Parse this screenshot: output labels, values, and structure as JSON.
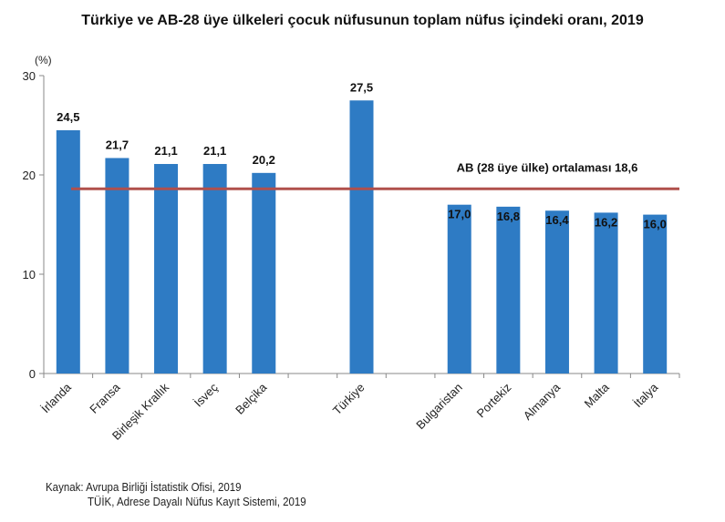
{
  "chart_data": {
    "type": "bar",
    "title": "Türkiye ve AB-28 üye ülkeleri çocuk nüfusunun toplam nüfus içindeki oranı, 2019",
    "ylabel": "(%)",
    "ylim": [
      0,
      30
    ],
    "yticks": [
      0,
      10,
      20,
      30
    ],
    "categories": [
      "İrlanda",
      "Fransa",
      "Birleşik Krallık",
      "İsveç",
      "Belçika",
      "Türkiye",
      "Bulgaristan",
      "Portekiz",
      "Almanya",
      "Malta",
      "İtalya"
    ],
    "values": [
      24.5,
      21.7,
      21.1,
      21.1,
      20.2,
      27.5,
      17.0,
      16.8,
      16.4,
      16.2,
      16.0
    ],
    "value_labels": [
      "24,5",
      "21,7",
      "21,1",
      "21,1",
      "20,2",
      "27,5",
      "17,0",
      "16,8",
      "16,4",
      "16,2",
      "16,0"
    ],
    "reference_line": {
      "value": 18.6,
      "label": "AB (28 üye ülke) ortalaması 18,6",
      "color": "#B0504C"
    },
    "bar_color": "#2E7BC4",
    "grid": false,
    "legend": "none"
  },
  "source": {
    "line1": "Kaynak: Avrupa Birliği İstatistik Ofisi, 2019",
    "line2": "TÜİK, Adrese Dayalı Nüfus Kayıt Sistemi, 2019"
  }
}
